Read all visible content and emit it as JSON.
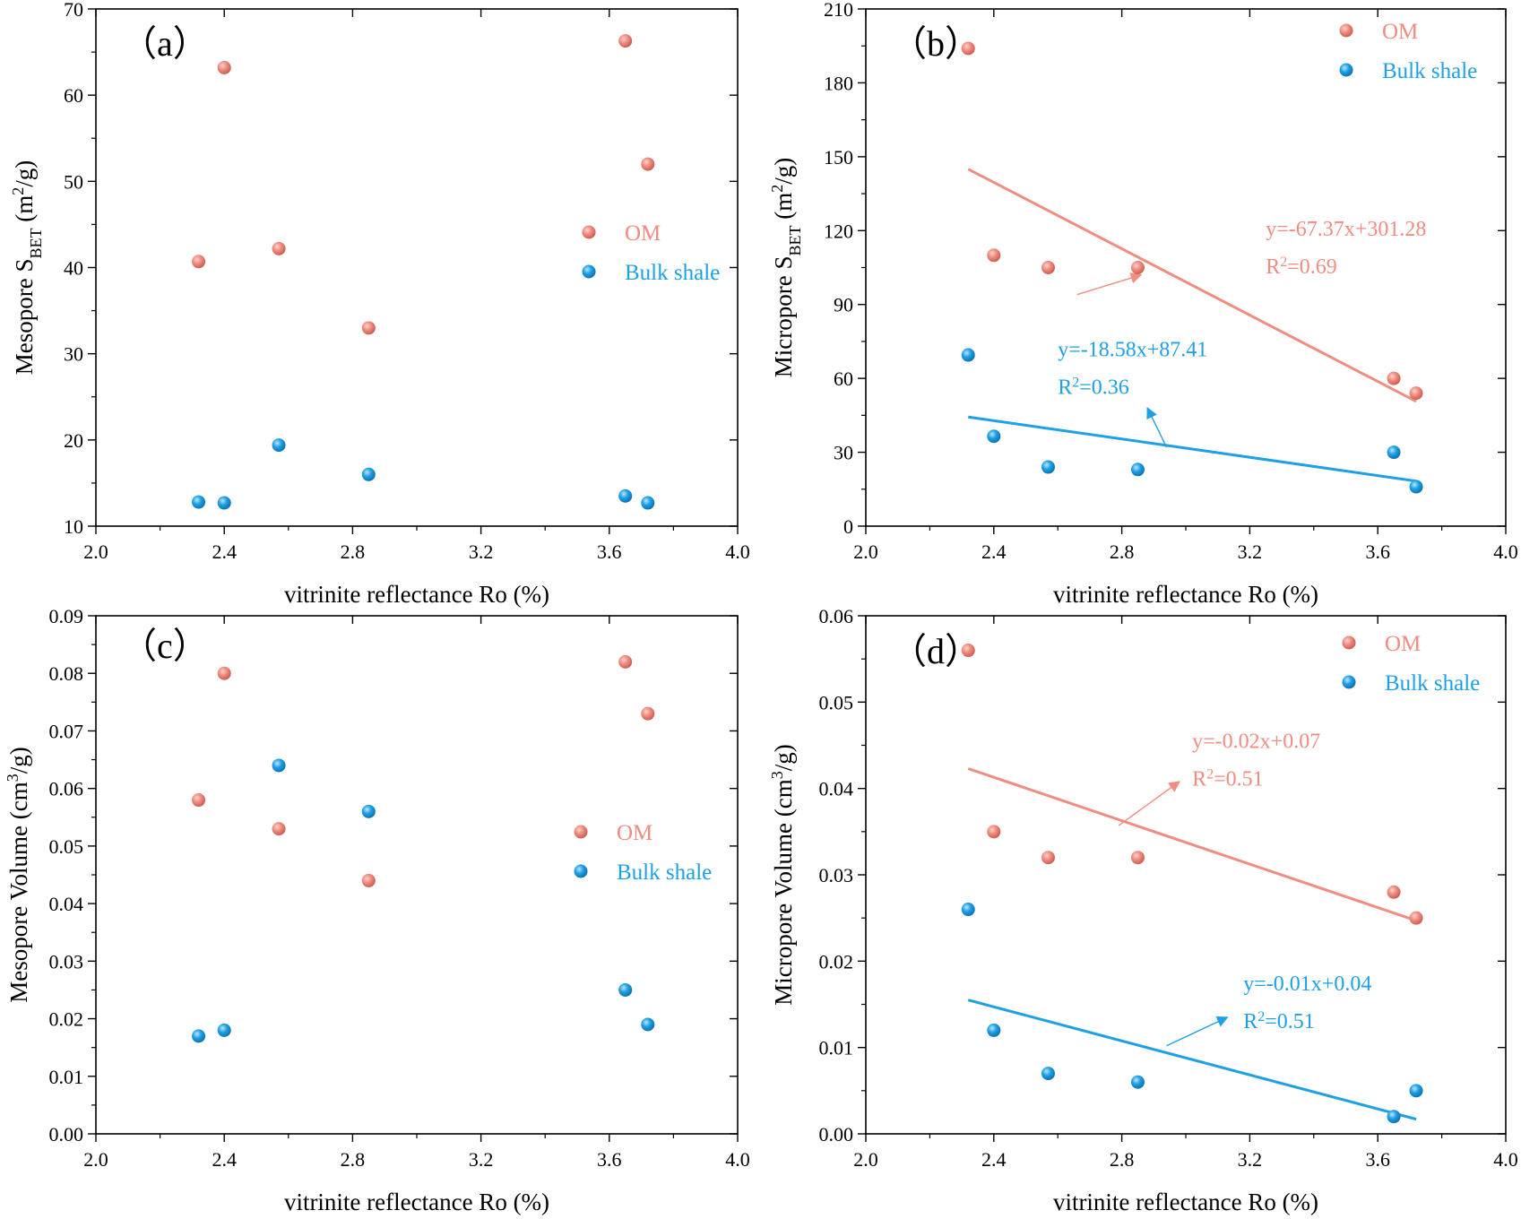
{
  "chart_data": [
    {
      "type": "scatter",
      "panel_label": "（a）",
      "title": "",
      "xlabel": "vitrinite reflectance Ro  (%)",
      "ylabel": {
        "prefix": "Mesopore S",
        "sub": "BET",
        "middle": " (m",
        "sup": "2",
        "suffix": "/g)"
      },
      "xlim": [
        2.0,
        4.0
      ],
      "ylim": [
        10,
        70
      ],
      "xticks": [
        2.0,
        2.4,
        2.8,
        3.2,
        3.6,
        4.0
      ],
      "xtick_labels": [
        "2.0",
        "2.4",
        "2.8",
        "3.2",
        "3.6",
        "4.0"
      ],
      "yticks": [
        10,
        20,
        30,
        40,
        50,
        60,
        70
      ],
      "ytick_labels": [
        "10",
        "20",
        "30",
        "40",
        "50",
        "60",
        "70"
      ],
      "legend_position": "middle-right",
      "series": [
        {
          "name": "OM",
          "color": "#f08c80",
          "x": [
            2.32,
            2.4,
            2.57,
            2.85,
            3.65,
            3.72
          ],
          "y": [
            40.7,
            63.2,
            42.2,
            33.0,
            66.3,
            52.0
          ]
        },
        {
          "name": "Bulk shale",
          "color": "#1ea0e6",
          "x": [
            2.32,
            2.4,
            2.57,
            2.85,
            3.65,
            3.72
          ],
          "y": [
            12.8,
            12.7,
            19.4,
            16.0,
            13.5,
            12.7
          ]
        }
      ],
      "fits": []
    },
    {
      "type": "scatter",
      "panel_label": "（b）",
      "title": "",
      "xlabel": "vitrinite reflectance Ro  (%)",
      "ylabel": {
        "prefix": "Micropore S",
        "sub": "BET",
        "middle": " (m",
        "sup": "2",
        "suffix": "/g)"
      },
      "xlim": [
        2.0,
        4.0
      ],
      "ylim": [
        0,
        210
      ],
      "xticks": [
        2.0,
        2.4,
        2.8,
        3.2,
        3.6,
        4.0
      ],
      "xtick_labels": [
        "2.0",
        "2.4",
        "2.8",
        "3.2",
        "3.6",
        "4.0"
      ],
      "yticks": [
        0,
        30,
        60,
        90,
        120,
        150,
        180,
        210
      ],
      "ytick_labels": [
        "0",
        "30",
        "60",
        "90",
        "120",
        "150",
        "180",
        "210"
      ],
      "legend_position": "top-right",
      "series": [
        {
          "name": "OM",
          "color": "#f08c80",
          "x": [
            2.32,
            2.4,
            2.57,
            2.85,
            3.65,
            3.72
          ],
          "y": [
            194,
            110,
            105,
            105,
            60,
            54
          ]
        },
        {
          "name": "Bulk shale",
          "color": "#1ea0e6",
          "x": [
            2.32,
            2.4,
            2.57,
            2.85,
            3.65,
            3.72
          ],
          "y": [
            69.5,
            36.5,
            24,
            23,
            30,
            16
          ]
        }
      ],
      "fits": [
        {
          "series": "OM",
          "x_range": [
            2.32,
            3.72
          ],
          "slope": -67.37,
          "intercept": 301.28,
          "equation": "y=-67.37x+301.28",
          "r2_prefix": "R",
          "r2_sup": "2",
          "r2_value": "=0.69",
          "label_at": [
            3.25,
            118
          ],
          "arrow_from": [
            2.66,
            94
          ],
          "arrow_to": [
            2.86,
            102
          ]
        },
        {
          "series": "Bulk shale",
          "x_range": [
            2.32,
            3.72
          ],
          "slope": -18.58,
          "intercept": 87.41,
          "equation": "y=-18.58x+87.41",
          "r2_prefix": "R",
          "r2_sup": "2",
          "r2_value": "=0.36",
          "label_at": [
            2.6,
            69
          ],
          "arrow_from": [
            2.94,
            32
          ],
          "arrow_to": [
            2.88,
            48
          ]
        }
      ]
    },
    {
      "type": "scatter",
      "panel_label": "（c）",
      "title": "",
      "xlabel": "vitrinite reflectance Ro (%)",
      "ylabel": {
        "prefix": "Mesopore Volume (cm",
        "sub": "",
        "middle": "",
        "sup": "3",
        "suffix": "/g)"
      },
      "xlim": [
        2.0,
        4.0
      ],
      "ylim": [
        0,
        0.09
      ],
      "xticks": [
        2.0,
        2.4,
        2.8,
        3.2,
        3.6,
        4.0
      ],
      "xtick_labels": [
        "2.0",
        "2.4",
        "2.8",
        "3.2",
        "3.6",
        "4.0"
      ],
      "yticks": [
        0,
        0.01,
        0.02,
        0.03,
        0.04,
        0.05,
        0.06,
        0.07,
        0.08,
        0.09
      ],
      "ytick_labels": [
        "0.00",
        "0.01",
        "0.02",
        "0.03",
        "0.04",
        "0.05",
        "0.06",
        "0.07",
        "0.08",
        "0.09"
      ],
      "legend_position": "middle-right",
      "series": [
        {
          "name": "OM",
          "color": "#f08c80",
          "x": [
            2.32,
            2.4,
            2.57,
            2.85,
            3.65,
            3.72
          ],
          "y": [
            0.058,
            0.08,
            0.053,
            0.044,
            0.082,
            0.073
          ]
        },
        {
          "name": "Bulk shale",
          "color": "#1ea0e6",
          "x": [
            2.32,
            2.4,
            2.57,
            2.85,
            3.65,
            3.72
          ],
          "y": [
            0.017,
            0.018,
            0.064,
            0.056,
            0.025,
            0.019
          ]
        }
      ],
      "fits": []
    },
    {
      "type": "scatter",
      "panel_label": "（d）",
      "title": "",
      "xlabel": "vitrinite reflectance Ro (%)",
      "ylabel": {
        "prefix": "Micropore Volume (cm",
        "sub": "",
        "middle": "",
        "sup": "3",
        "suffix": "/g)"
      },
      "xlim": [
        2.0,
        4.0
      ],
      "ylim": [
        0,
        0.06
      ],
      "xticks": [
        2.0,
        2.4,
        2.8,
        3.2,
        3.6,
        4.0
      ],
      "xtick_labels": [
        "2.0",
        "2.4",
        "2.8",
        "3.2",
        "3.6",
        "4.0"
      ],
      "yticks": [
        0,
        0.01,
        0.02,
        0.03,
        0.04,
        0.05,
        0.06
      ],
      "ytick_labels": [
        "0.00",
        "0.01",
        "0.02",
        "0.03",
        "0.04",
        "0.05",
        "0.06"
      ],
      "legend_position": "top-right",
      "series": [
        {
          "name": "OM",
          "color": "#f08c80",
          "x": [
            2.32,
            2.4,
            2.57,
            2.85,
            3.65,
            3.72
          ],
          "y": [
            0.056,
            0.035,
            0.032,
            0.032,
            0.028,
            0.025
          ]
        },
        {
          "name": "Bulk shale",
          "color": "#1ea0e6",
          "x": [
            2.32,
            2.4,
            2.57,
            2.85,
            3.65,
            3.72
          ],
          "y": [
            0.026,
            0.012,
            0.007,
            0.006,
            0.002,
            0.005
          ]
        }
      ],
      "fits": [
        {
          "series": "OM",
          "x_range": [
            2.32,
            3.72
          ],
          "y_range": [
            0.0423,
            0.0247
          ],
          "equation": "y=-0.02x+0.07",
          "r2_prefix": "R",
          "r2_sup": "2",
          "r2_value": "=0.51",
          "label_at": [
            3.02,
            0.0447
          ],
          "arrow_from": [
            2.79,
            0.0357
          ],
          "arrow_to": [
            2.98,
            0.0408
          ]
        },
        {
          "series": "Bulk shale",
          "x_range": [
            2.32,
            3.72
          ],
          "y_range": [
            0.0155,
            0.0017
          ],
          "equation": "y=-0.01x+0.04",
          "r2_prefix": "R",
          "r2_sup": "2",
          "r2_value": "=0.51",
          "label_at": [
            3.18,
            0.0166
          ],
          "arrow_from": [
            2.94,
            0.0102
          ],
          "arrow_to": [
            3.13,
            0.0135
          ]
        }
      ]
    }
  ]
}
